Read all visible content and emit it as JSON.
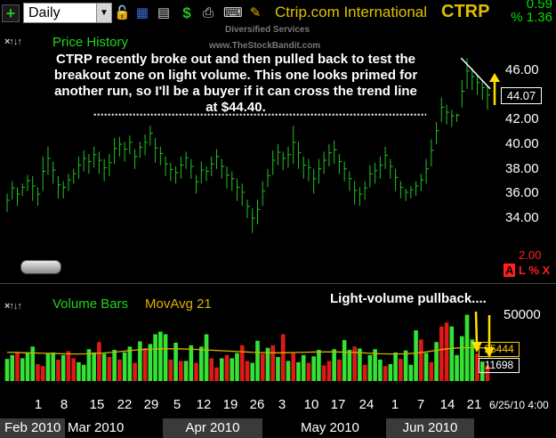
{
  "toolbar": {
    "period": "Daily",
    "company": "Ctrip.com International",
    "ticker": "CTRP",
    "change": "0.59",
    "change_pct": "% 1.36",
    "watermark_line1": "Diversified Services",
    "watermark_line2": "www.TheStockBandit.com",
    "icons": [
      "add-icon",
      "lock-icon",
      "save-icon",
      "printer-icon",
      "dollar-icon",
      "print-icon",
      "keyboard-icon",
      "pencil-icon"
    ]
  },
  "price_pane": {
    "title": "Price History",
    "pane_controls": "×↑↓↑",
    "annotation": "CTRP recently broke out and then pulled back to test the breakout zone on light volume.  This one looks primed for another run, so I'll be a buyer if it can cross the trend line at $44.40.",
    "last_price": "44.07",
    "y_ticks": [
      "46.00",
      "44.00",
      "42.00",
      "40.00",
      "38.00",
      "36.00",
      "34.00"
    ],
    "y2_label": "2.00",
    "scale_controls": {
      "a": "A",
      "l": "L",
      "pct": "%",
      "x": "X"
    }
  },
  "volume_pane": {
    "title": "Volume Bars",
    "mavg_label": "MovAvg 21",
    "pane_controls": "×↑↓↑",
    "annotation": "Light-volume pullback....",
    "y_tick": "50000",
    "mavg_value": "25444",
    "last_volume": "11698"
  },
  "x_axis": {
    "day_labels": [
      "1",
      "8",
      "15",
      "22",
      "29",
      "5",
      "12",
      "19",
      "26",
      "3",
      "10",
      "17",
      "24",
      "1",
      "7",
      "14",
      "21"
    ],
    "date": "6/25/10 4:00",
    "months": [
      "Feb 2010",
      "Mar 2010",
      "Apr 2010",
      "May 2010",
      "Jun 2010"
    ]
  },
  "colors": {
    "background": "#000000",
    "price_bars": "#22c322",
    "volume_up": "#33e233",
    "volume_down": "#e01818",
    "mavg": "#d8b000",
    "annotation_arrow": "#ffe000"
  },
  "chart_data": [
    {
      "type": "ohlc",
      "title": "Price History",
      "ylim": [
        32.2,
        47.6
      ],
      "y_ticks": [
        34,
        36,
        38,
        40,
        42,
        44,
        46
      ],
      "bars": [
        [
          36.0,
          34.5
        ],
        [
          37.0,
          35.5
        ],
        [
          36.5,
          35.0
        ],
        [
          36.8,
          35.8
        ],
        [
          37.5,
          36.2
        ],
        [
          37.4,
          35.4
        ],
        [
          36.5,
          35.0
        ],
        [
          39.0,
          36.2
        ],
        [
          39.8,
          37.5
        ],
        [
          38.6,
          36.8
        ],
        [
          37.4,
          35.6
        ],
        [
          37.0,
          35.6
        ],
        [
          37.6,
          36.2
        ],
        [
          38.0,
          36.8
        ],
        [
          39.0,
          37.2
        ],
        [
          39.5,
          37.8
        ],
        [
          39.2,
          37.6
        ],
        [
          39.8,
          38.1
        ],
        [
          39.4,
          37.6
        ],
        [
          38.8,
          37.0
        ],
        [
          39.2,
          37.4
        ],
        [
          40.5,
          38.4
        ],
        [
          40.6,
          39.0
        ],
        [
          40.2,
          38.6
        ],
        [
          40.7,
          39.2
        ],
        [
          39.6,
          38.0
        ],
        [
          40.2,
          38.9
        ],
        [
          40.8,
          39.1
        ],
        [
          41.5,
          39.9
        ],
        [
          40.5,
          38.5
        ],
        [
          39.8,
          38.3
        ],
        [
          39.0,
          37.4
        ],
        [
          38.5,
          37.0
        ],
        [
          38.2,
          36.8
        ],
        [
          39.0,
          37.2
        ],
        [
          39.4,
          38.0
        ],
        [
          38.8,
          37.2
        ],
        [
          37.5,
          36.0
        ],
        [
          38.6,
          36.8
        ],
        [
          38.2,
          37.0
        ],
        [
          39.0,
          37.4
        ],
        [
          39.6,
          38.0
        ],
        [
          38.8,
          37.2
        ],
        [
          38.2,
          36.4
        ],
        [
          37.8,
          36.2
        ],
        [
          37.2,
          35.4
        ],
        [
          36.8,
          35.0
        ],
        [
          35.5,
          34.0
        ],
        [
          34.8,
          32.8
        ],
        [
          35.5,
          33.5
        ],
        [
          37.0,
          35.0
        ],
        [
          38.0,
          36.5
        ],
        [
          39.5,
          37.5
        ],
        [
          40.0,
          38.3
        ],
        [
          39.4,
          37.9
        ],
        [
          39.8,
          38.1
        ],
        [
          41.5,
          38.4
        ],
        [
          40.2,
          38.0
        ],
        [
          39.0,
          37.2
        ],
        [
          38.8,
          37.0
        ],
        [
          38.0,
          36.0
        ],
        [
          38.8,
          36.8
        ],
        [
          39.4,
          37.6
        ],
        [
          40.0,
          38.2
        ],
        [
          40.3,
          38.4
        ],
        [
          39.2,
          37.6
        ],
        [
          38.6,
          37.0
        ],
        [
          37.8,
          36.2
        ],
        [
          37.0,
          35.1
        ],
        [
          36.5,
          35.0
        ],
        [
          37.0,
          35.5
        ],
        [
          38.3,
          36.5
        ],
        [
          38.5,
          36.8
        ],
        [
          39.0,
          37.2
        ],
        [
          39.8,
          38.0
        ],
        [
          38.8,
          37.2
        ],
        [
          38.0,
          36.2
        ],
        [
          37.0,
          35.6
        ],
        [
          36.4,
          35.4
        ],
        [
          36.6,
          35.6
        ],
        [
          37.0,
          35.8
        ],
        [
          37.6,
          36.2
        ],
        [
          38.8,
          36.8
        ],
        [
          40.4,
          38.2
        ],
        [
          41.8,
          40.0
        ],
        [
          43.8,
          41.8
        ],
        [
          43.2,
          41.6
        ],
        [
          42.8,
          41.4
        ],
        [
          42.5,
          41.8
        ],
        [
          45.2,
          43.0
        ],
        [
          47.0,
          44.5
        ],
        [
          46.2,
          44.4
        ],
        [
          45.6,
          44.0
        ],
        [
          45.2,
          43.6
        ],
        [
          44.8,
          42.8
        ]
      ]
    },
    {
      "type": "bar",
      "title": "Volume Bars",
      "ylim": [
        0,
        62000
      ],
      "y_ticks": [
        50000
      ],
      "series": [
        {
          "name": "Volume Bars",
          "values": [
            17000,
            20000,
            22500,
            17500,
            21500,
            26500,
            13000,
            11500,
            21500,
            22000,
            16500,
            20000,
            23000,
            17500,
            14500,
            12500,
            24500,
            22000,
            30000,
            21000,
            18500,
            24000,
            16500,
            22000,
            26500,
            14000,
            30500,
            25500,
            28500,
            36000,
            38000,
            36000,
            16500,
            29500,
            15500,
            15500,
            27500,
            14000,
            26500,
            36000,
            17500,
            10500,
            17500,
            20000,
            17500,
            21500,
            27500,
            15500,
            14000,
            31000,
            21000,
            25500,
            27500,
            18500,
            36000,
            15500,
            22000,
            14500,
            20000,
            14000,
            19000,
            24000,
            12000,
            15500,
            24500,
            16500,
            31500,
            24000,
            26500,
            25000,
            12500,
            20000,
            24500,
            16500,
            11500,
            13000,
            22000,
            17000,
            23500,
            12500,
            39000,
            32000,
            21500,
            14500,
            30000,
            42000,
            45000,
            42000,
            20000,
            34500,
            51000,
            32000,
            21000,
            15000,
            12000
          ]
        },
        {
          "name": "MovAvg 21",
          "values": [
            22000,
            22000,
            21900,
            21800,
            21700,
            21600,
            21500,
            21400,
            21300,
            21200,
            21100,
            21000,
            20900,
            20800,
            20800,
            20900,
            21000,
            21200,
            21400,
            21600,
            21900,
            22200,
            22600,
            23000,
            23400,
            23800,
            24100,
            24300,
            24500,
            24600,
            24700,
            24800,
            24800,
            24800,
            24700,
            24600,
            24500,
            24300,
            24100,
            23900,
            23700,
            23500,
            23300,
            23100,
            22900,
            22700,
            22500,
            22300,
            22100,
            22000,
            21900,
            21800,
            21700,
            21700,
            21700,
            21800,
            21900,
            22000,
            22100,
            22200,
            22300,
            22300,
            22400,
            22400,
            22400,
            22300,
            22200,
            22100,
            22000,
            21800,
            21600,
            21400,
            21200,
            21000,
            20900,
            20800,
            20800,
            20900,
            21000,
            21200,
            21500,
            21900,
            22400,
            23000,
            23600,
            24200,
            24700,
            25100,
            25400,
            25600,
            25700,
            25700,
            25600,
            25500,
            25444
          ]
        }
      ],
      "up_down": "gudgugddggdgddugugdgdgdggdgdugggdgdgudguddgdguddgudgdgdgdgudguddgdgudgduggdugdgggdgdgddgugggdg"
    }
  ]
}
